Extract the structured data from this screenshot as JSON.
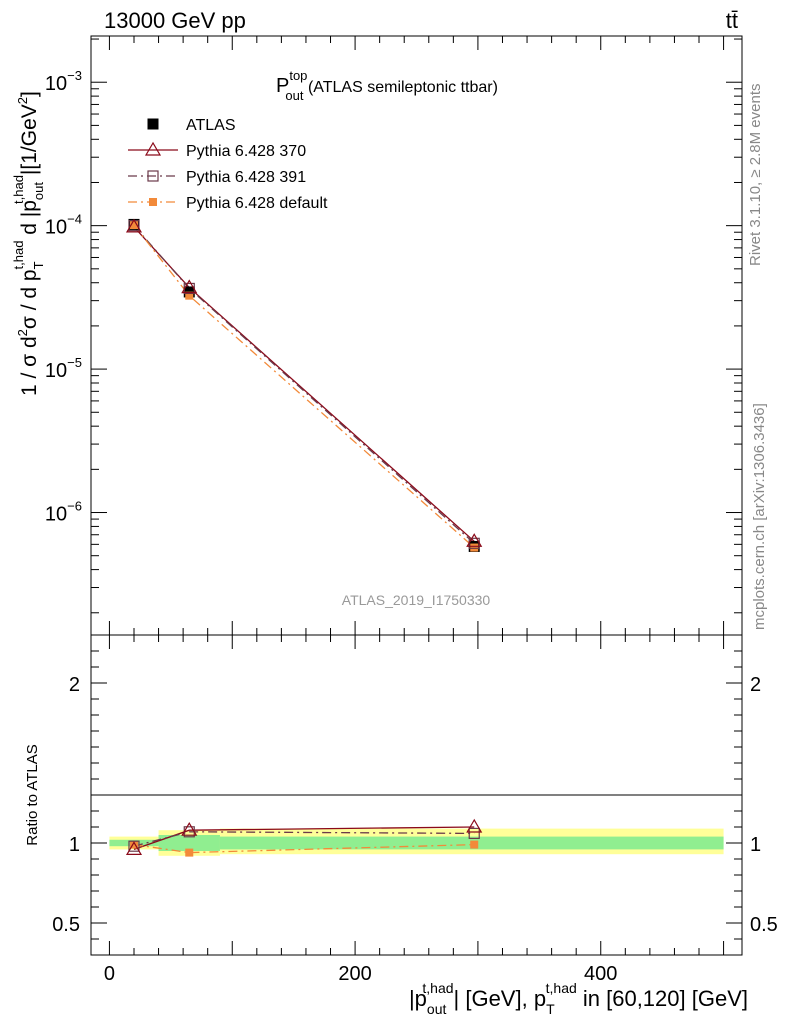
{
  "header": {
    "energy_label": "13000 GeV pp",
    "process_label": "tt̄"
  },
  "side_labels": {
    "rivet": "Rivet 3.1.10, ≥ 2.8M events",
    "mcplots": "mcplots.cern.ch [arXiv:1306.3436]"
  },
  "analysis_id": "ATLAS_2019_I1750330",
  "chart_data": [
    {
      "type": "line",
      "panel": "main",
      "title": {
        "main": "P",
        "sup": "top",
        "sub": "out",
        "suffix": " (ATLAS semileptonic ttbar)"
      },
      "ylabel": "1 / σ d²σ / d p_T^{t,had} d |p_out^{t,had}| [1/GeV²]",
      "xlabel": "|p_out^{t,had}| [GeV], p_T^{t,had} in [60,120] [GeV]",
      "yscale": "log",
      "xlim": [
        -15,
        515
      ],
      "ylim": [
        1.4e-07,
        0.0021
      ],
      "ytick_labels": [
        {
          "value": 0.001,
          "base": "10",
          "exp": "−3"
        },
        {
          "value": 0.0001,
          "base": "10",
          "exp": "−4"
        },
        {
          "value": 1e-05,
          "base": "10",
          "exp": "−5"
        },
        {
          "value": 1e-06,
          "base": "10",
          "exp": "−6"
        }
      ],
      "legend_position": "upper-left",
      "x": [
        20,
        65,
        297
      ],
      "series": [
        {
          "name": "ATLAS",
          "color": "#000000",
          "marker": "square-filled",
          "values": [
            0.000102,
            3.45e-05,
            5.8e-07
          ]
        },
        {
          "name": "Pythia 6.428 370",
          "color": "#8b0a1a",
          "marker": "triangle-open",
          "line": "solid",
          "values": [
            9.8e-05,
            3.7e-05,
            6.3e-07
          ]
        },
        {
          "name": "Pythia 6.428 391",
          "color": "#6b3a4a",
          "marker": "square-open",
          "line": "dashdot",
          "values": [
            0.0001,
            3.65e-05,
            6.1e-07
          ]
        },
        {
          "name": "Pythia 6.428 default",
          "color": "#f28a3a",
          "marker": "square-filled-small",
          "line": "dashdot",
          "values": [
            0.000101,
            3.25e-05,
            5.7e-07
          ]
        }
      ]
    },
    {
      "type": "line",
      "panel": "ratio",
      "ylabel": "Ratio to ATLAS",
      "xlim": [
        -15,
        515
      ],
      "ylim": [
        0.3,
        2.3
      ],
      "yticks": [
        0.5,
        1,
        2
      ],
      "ytick_labels": [
        "0.5",
        "1",
        "2"
      ],
      "xticks": [
        0,
        200,
        400
      ],
      "xtick_labels": [
        "0",
        "200",
        "400"
      ],
      "x": [
        20,
        65,
        297
      ],
      "bands": [
        {
          "x0": 0,
          "x1": 40,
          "inner": [
            0.98,
            1.02
          ],
          "outer": [
            0.96,
            1.04
          ]
        },
        {
          "x0": 40,
          "x1": 90,
          "inner": [
            0.95,
            1.05
          ],
          "outer": [
            0.92,
            1.08
          ]
        },
        {
          "x0": 90,
          "x1": 500,
          "inner": [
            0.96,
            1.04
          ],
          "outer": [
            0.93,
            1.09
          ]
        }
      ],
      "band_colors": {
        "inner": "#90ee90",
        "outer": "#ffff99"
      },
      "series": [
        {
          "name": "Pythia 6.428 370",
          "color": "#8b0a1a",
          "marker": "triangle-open",
          "line": "solid",
          "values": [
            0.96,
            1.08,
            1.1
          ]
        },
        {
          "name": "Pythia 6.428 391",
          "color": "#6b3a4a",
          "marker": "square-open",
          "line": "dashdot",
          "values": [
            0.98,
            1.07,
            1.06
          ]
        },
        {
          "name": "Pythia 6.428 default",
          "color": "#f28a3a",
          "marker": "square-filled-small",
          "line": "dashdot",
          "values": [
            0.99,
            0.94,
            0.99
          ]
        }
      ]
    }
  ]
}
